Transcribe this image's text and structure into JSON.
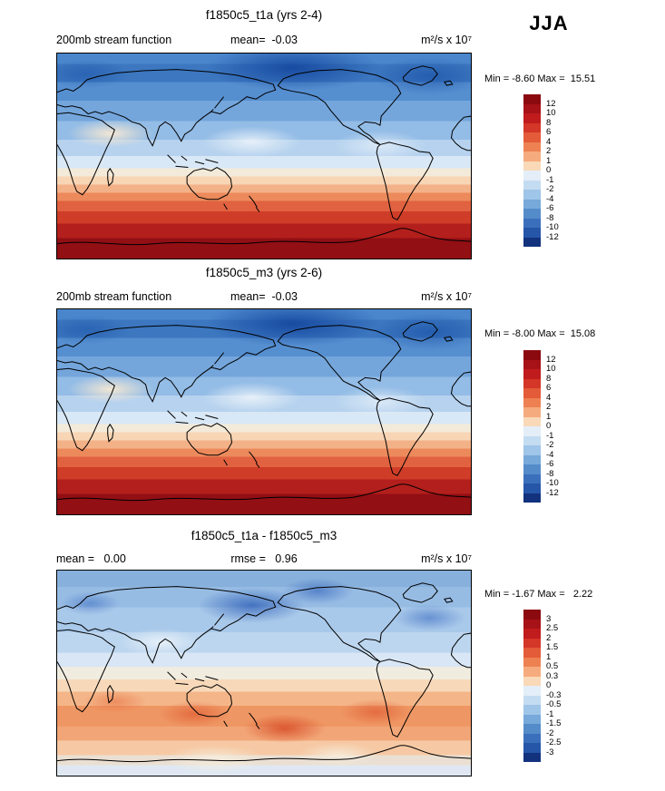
{
  "season": "JJA",
  "panels": [
    {
      "title": "f1850c5_t1a (yrs 2-4)",
      "header_left": "200mb stream function",
      "header_mid": "mean=  -0.03",
      "header_right": "m²/s x 10⁷",
      "stats": "Min = -8.60 Max =  15.51",
      "colorbar": {
        "levels": [
          "12",
          "10",
          "8",
          "6",
          "4",
          "2",
          "1",
          "0",
          "-1",
          "-2",
          "-4",
          "-6",
          "-8",
          "-10",
          "-12"
        ],
        "colors": [
          "#8b0a10",
          "#a61217",
          "#c01b1d",
          "#d43627",
          "#e35b38",
          "#ee8152",
          "#f5ab7e",
          "#f9d9b8",
          "#e4eef8",
          "#c4dcf1",
          "#9fc5e8",
          "#77a9da",
          "#548cca",
          "#3a70bb",
          "#2656a8",
          "#12327e"
        ]
      }
    },
    {
      "title": "f1850c5_m3 (yrs 2-6)",
      "header_left": "200mb stream function",
      "header_mid": "mean=  -0.03",
      "header_right": "m²/s x 10⁷",
      "stats": "Min = -8.00 Max =  15.08",
      "colorbar": {
        "levels": [
          "12",
          "10",
          "8",
          "6",
          "4",
          "2",
          "1",
          "0",
          "-1",
          "-2",
          "-4",
          "-6",
          "-8",
          "-10",
          "-12"
        ],
        "colors": [
          "#8b0a10",
          "#a61217",
          "#c01b1d",
          "#d43627",
          "#e35b38",
          "#ee8152",
          "#f5ab7e",
          "#f9d9b8",
          "#e4eef8",
          "#c4dcf1",
          "#9fc5e8",
          "#77a9da",
          "#548cca",
          "#3a70bb",
          "#2656a8",
          "#12327e"
        ]
      }
    },
    {
      "title": "f1850c5_t1a - f1850c5_m3",
      "header_left": "mean =   0.00",
      "header_mid": "rmse =   0.96",
      "header_right": "m²/s x 10⁷",
      "stats": "Min = -1.67 Max =   2.22",
      "colorbar": {
        "levels": [
          "3",
          "2.5",
          "2",
          "1.5",
          "1",
          "0.5",
          "0.3",
          "0",
          "-0.3",
          "-0.5",
          "-1",
          "-1.5",
          "-2",
          "-2.5",
          "-3"
        ],
        "colors": [
          "#8b0a10",
          "#a61217",
          "#c01b1d",
          "#d43627",
          "#e35b38",
          "#ee8152",
          "#f5ab7e",
          "#f9d9b8",
          "#e4eef8",
          "#c4dcf1",
          "#9fc5e8",
          "#77a9da",
          "#548cca",
          "#3a70bb",
          "#2656a8",
          "#12327e"
        ]
      }
    }
  ],
  "chart_data": [
    {
      "type": "heatmap",
      "subtype": "filled-contour-global-map",
      "title": "f1850c5_t1a (yrs 2-4)",
      "variable": "200mb stream function",
      "season": "JJA",
      "units": "m²/s x 10⁷",
      "mean": -0.03,
      "min": -8.6,
      "max": 15.51,
      "contour_levels": [
        -12,
        -10,
        -8,
        -6,
        -4,
        -2,
        -1,
        0,
        1,
        2,
        4,
        6,
        8,
        10,
        12
      ],
      "colormap": "blue-white-red",
      "legend_position": "right",
      "pattern": "zonally banded: negative (blue) Northern Hemisphere, near-zero band ~20N, strongly positive (dark red) Southern Hemisphere high latitudes"
    },
    {
      "type": "heatmap",
      "subtype": "filled-contour-global-map",
      "title": "f1850c5_m3 (yrs 2-6)",
      "variable": "200mb stream function",
      "season": "JJA",
      "units": "m²/s x 10⁷",
      "mean": -0.03,
      "min": -8.0,
      "max": 15.08,
      "contour_levels": [
        -12,
        -10,
        -8,
        -6,
        -4,
        -2,
        -1,
        0,
        1,
        2,
        4,
        6,
        8,
        10,
        12
      ],
      "colormap": "blue-white-red",
      "legend_position": "right",
      "pattern": "zonally banded: negative (blue) Northern Hemisphere, positive (dark red) Southern Hemisphere"
    },
    {
      "type": "heatmap",
      "subtype": "filled-contour-global-map-difference",
      "title": "f1850c5_t1a - f1850c5_m3",
      "season": "JJA",
      "units": "m²/s x 10⁷",
      "mean": 0.0,
      "rmse": 0.96,
      "min": -1.67,
      "max": 2.22,
      "contour_levels": [
        -3,
        -2.5,
        -2,
        -1.5,
        -1,
        -0.5,
        -0.3,
        0,
        0.3,
        0.5,
        1,
        1.5,
        2,
        2.5,
        3
      ],
      "colormap": "blue-white-red",
      "legend_position": "right",
      "pattern": "negative (blue) differences across Northern Hemisphere with minima over North Pacific; positive (orange/red) band across Southern Hemisphere midlatitudes; near-zero along ~20S and Antarctic coast"
    }
  ]
}
